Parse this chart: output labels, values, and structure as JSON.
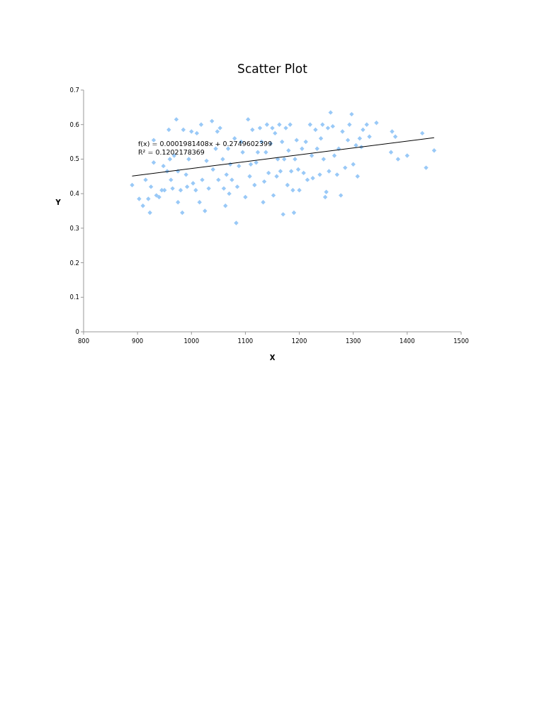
{
  "chart_data": {
    "type": "scatter",
    "title": "Scatter Plot",
    "xlabel": "X",
    "ylabel": "Y",
    "xlim": [
      800,
      1500
    ],
    "xticks": [
      800,
      900,
      1000,
      1100,
      1200,
      1300,
      1400,
      1500
    ],
    "ylim": [
      0,
      0.7
    ],
    "yticks": [
      0,
      0.1,
      0.2,
      0.3,
      0.4,
      0.5,
      0.6,
      0.7
    ],
    "annotations": [
      "f(x) = 0.0001981408x + 0.2749602399",
      "R² = 0.1202178369"
    ],
    "series": [
      {
        "color": "#99c9f7",
        "marker": "diamond",
        "x": [
          890,
          903,
          910,
          915,
          920,
          923,
          925,
          930,
          930,
          935,
          940,
          945,
          948,
          950,
          955,
          958,
          960,
          962,
          965,
          968,
          972,
          975,
          975,
          980,
          983,
          985,
          990,
          992,
          995,
          1000,
          1003,
          1008,
          1010,
          1015,
          1018,
          1020,
          1025,
          1028,
          1032,
          1038,
          1040,
          1045,
          1048,
          1050,
          1053,
          1058,
          1060,
          1063,
          1065,
          1068,
          1070,
          1072,
          1075,
          1080,
          1083,
          1085,
          1088,
          1092,
          1095,
          1100,
          1105,
          1108,
          1110,
          1113,
          1117,
          1120,
          1123,
          1127,
          1130,
          1133,
          1135,
          1138,
          1140,
          1143,
          1147,
          1150,
          1152,
          1155,
          1158,
          1160,
          1163,
          1165,
          1168,
          1170,
          1172,
          1175,
          1178,
          1180,
          1183,
          1185,
          1188,
          1190,
          1192,
          1195,
          1198,
          1200,
          1205,
          1208,
          1212,
          1215,
          1220,
          1223,
          1225,
          1230,
          1233,
          1238,
          1240,
          1243,
          1245,
          1248,
          1250,
          1253,
          1255,
          1258,
          1262,
          1265,
          1270,
          1273,
          1277,
          1280,
          1285,
          1290,
          1293,
          1297,
          1300,
          1305,
          1308,
          1312,
          1315,
          1318,
          1325,
          1330,
          1343,
          1370,
          1372,
          1378,
          1383,
          1400,
          1428,
          1435,
          1450
        ],
        "values": [
          0.425,
          0.385,
          0.365,
          0.44,
          0.385,
          0.345,
          0.42,
          0.555,
          0.49,
          0.395,
          0.39,
          0.41,
          0.48,
          0.41,
          0.465,
          0.585,
          0.5,
          0.44,
          0.415,
          0.51,
          0.615,
          0.375,
          0.465,
          0.41,
          0.345,
          0.585,
          0.455,
          0.42,
          0.5,
          0.58,
          0.43,
          0.41,
          0.575,
          0.375,
          0.6,
          0.44,
          0.35,
          0.495,
          0.415,
          0.61,
          0.47,
          0.53,
          0.58,
          0.44,
          0.59,
          0.5,
          0.415,
          0.365,
          0.455,
          0.53,
          0.4,
          0.485,
          0.44,
          0.56,
          0.315,
          0.42,
          0.48,
          0.55,
          0.52,
          0.39,
          0.615,
          0.45,
          0.485,
          0.585,
          0.425,
          0.49,
          0.52,
          0.59,
          0.55,
          0.375,
          0.435,
          0.52,
          0.6,
          0.46,
          0.545,
          0.59,
          0.395,
          0.575,
          0.45,
          0.5,
          0.6,
          0.465,
          0.55,
          0.34,
          0.5,
          0.59,
          0.425,
          0.525,
          0.6,
          0.465,
          0.41,
          0.345,
          0.5,
          0.555,
          0.47,
          0.41,
          0.53,
          0.46,
          0.55,
          0.44,
          0.6,
          0.51,
          0.445,
          0.585,
          0.53,
          0.455,
          0.56,
          0.6,
          0.5,
          0.39,
          0.405,
          0.59,
          0.465,
          0.635,
          0.595,
          0.51,
          0.455,
          0.53,
          0.395,
          0.58,
          0.475,
          0.555,
          0.6,
          0.63,
          0.485,
          0.54,
          0.45,
          0.56,
          0.535,
          0.585,
          0.6,
          0.565,
          0.605,
          0.52,
          0.58,
          0.565,
          0.5,
          0.51,
          0.575,
          0.475,
          0.525
        ]
      },
      {
        "type": "line",
        "color": "#000000",
        "marker": "none",
        "line_style": "solid",
        "x": [
          890,
          1450
        ],
        "values": [
          0.451,
          0.562
        ]
      }
    ]
  }
}
